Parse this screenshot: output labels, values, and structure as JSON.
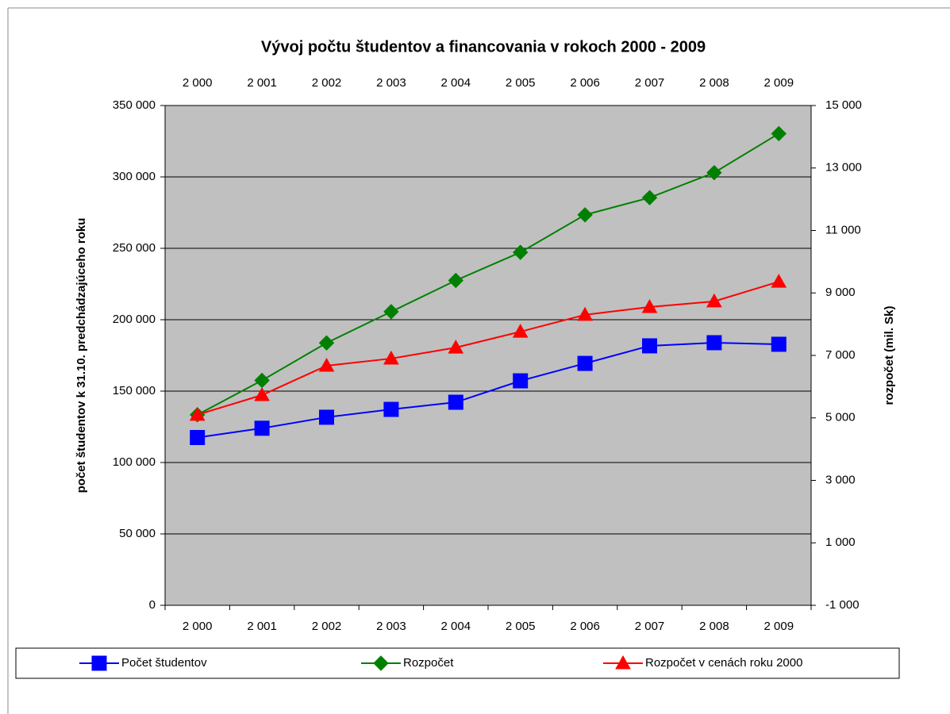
{
  "chart_data": {
    "type": "line",
    "title": "Vývoj počtu študentov a financovania v rokoch 2000 - 2009",
    "ylabel": "počet študentov k 31.10. predchádzajúceho roku",
    "y2label": "rozpočet (mil. Sk)",
    "categories": [
      "2 000",
      "2 001",
      "2 002",
      "2 003",
      "2 004",
      "2 005",
      "2 006",
      "2 007",
      "2 008",
      "2 009"
    ],
    "ylim": [
      0,
      350000
    ],
    "yticks": [
      0,
      {
        "value": 50000,
        "label": "50 000"
      },
      {
        "value": 100000,
        "label": "100 000"
      },
      {
        "value": 150000,
        "label": "150 000"
      },
      {
        "value": 200000,
        "label": "200 000"
      },
      {
        "value": 250000,
        "label": "250 000"
      },
      {
        "value": 300000,
        "label": "300 000"
      },
      {
        "value": 350000,
        "label": "350 000"
      }
    ],
    "y2lim": [
      -1000,
      15000
    ],
    "y2ticks": [
      {
        "value": -1000,
        "label": "-1 000"
      },
      {
        "value": 1000,
        "label": "1 000"
      },
      {
        "value": 3000,
        "label": "3 000"
      },
      {
        "value": 5000,
        "label": "5 000"
      },
      {
        "value": 7000,
        "label": "7 000"
      },
      {
        "value": 9000,
        "label": "9 000"
      },
      {
        "value": 11000,
        "label": "11 000"
      },
      {
        "value": 13000,
        "label": "13 000"
      },
      {
        "value": 15000,
        "label": "15 000"
      }
    ],
    "grid": true,
    "plot_background": "#c0c0c0",
    "legend": "bottom",
    "series": [
      {
        "name": "Počet študentov",
        "color": "#0000ff",
        "marker": "square",
        "values": [
          117500,
          124000,
          131700,
          137200,
          142200,
          157200,
          169400,
          181700,
          183900,
          182800
        ]
      },
      {
        "name": "Rozpočet",
        "color": "#008000",
        "marker": "diamond",
        "axis": "y2",
        "values": [
          5100,
          6200,
          7400,
          8400,
          9400,
          10300,
          11500,
          12050,
          12850,
          14100
        ]
      },
      {
        "name": "Rozpočet v cenách roku 2000",
        "color": "#ff0000",
        "marker": "triangle",
        "axis": "y2",
        "values": [
          5100,
          5730,
          6670,
          6900,
          7250,
          7760,
          8300,
          8550,
          8730,
          9360
        ]
      }
    ]
  }
}
